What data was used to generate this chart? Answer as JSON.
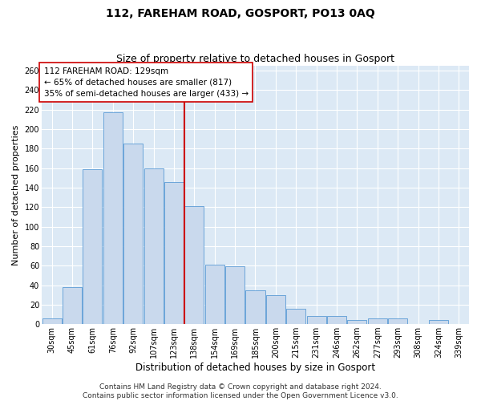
{
  "title": "112, FAREHAM ROAD, GOSPORT, PO13 0AQ",
  "subtitle": "Size of property relative to detached houses in Gosport",
  "xlabel": "Distribution of detached houses by size in Gosport",
  "ylabel": "Number of detached properties",
  "categories": [
    "30sqm",
    "45sqm",
    "61sqm",
    "76sqm",
    "92sqm",
    "107sqm",
    "123sqm",
    "138sqm",
    "154sqm",
    "169sqm",
    "185sqm",
    "200sqm",
    "215sqm",
    "231sqm",
    "246sqm",
    "262sqm",
    "277sqm",
    "293sqm",
    "308sqm",
    "324sqm",
    "339sqm"
  ],
  "values": [
    6,
    38,
    159,
    217,
    185,
    160,
    146,
    121,
    61,
    59,
    35,
    30,
    16,
    8,
    8,
    4,
    6,
    6,
    0,
    4,
    0
  ],
  "bar_color": "#c9d9ed",
  "bar_edge_color": "#5b9bd5",
  "background_color": "#dce9f5",
  "grid_color": "#ffffff",
  "vline_x": 6.5,
  "vline_color": "#cc0000",
  "annotation_text": "112 FAREHAM ROAD: 129sqm\n← 65% of detached houses are smaller (817)\n35% of semi-detached houses are larger (433) →",
  "annotation_box_color": "#ffffff",
  "annotation_box_edge": "#cc0000",
  "ylim": [
    0,
    265
  ],
  "yticks": [
    0,
    20,
    40,
    60,
    80,
    100,
    120,
    140,
    160,
    180,
    200,
    220,
    240,
    260
  ],
  "footer": "Contains HM Land Registry data © Crown copyright and database right 2024.\nContains public sector information licensed under the Open Government Licence v3.0.",
  "title_fontsize": 10,
  "subtitle_fontsize": 9,
  "xlabel_fontsize": 8.5,
  "ylabel_fontsize": 8,
  "tick_fontsize": 7,
  "annotation_fontsize": 7.5,
  "footer_fontsize": 6.5
}
